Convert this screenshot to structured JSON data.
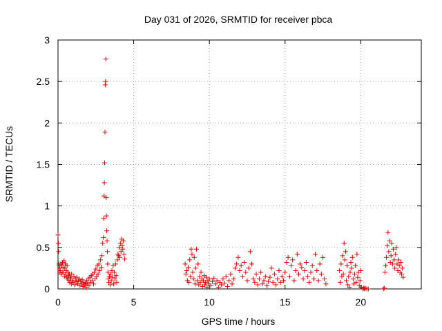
{
  "chart_data": {
    "type": "scatter",
    "title": "Day 031 of 2026, SRMTID for receiver pbca",
    "xlabel": "GPS time / hours",
    "ylabel": "SRMTID / TECUs",
    "xlim": [
      0,
      24
    ],
    "ylim": [
      0,
      3
    ],
    "xticks": [
      0,
      5,
      10,
      15,
      20
    ],
    "xtick_labels": [
      "0",
      "5",
      "10",
      "15",
      "20"
    ],
    "yticks": [
      0,
      0.5,
      1,
      1.5,
      2,
      2.5,
      3
    ],
    "ytick_labels": [
      "0",
      "0.5",
      "1",
      "1.5",
      "2",
      "2.5",
      "3"
    ],
    "grid": true,
    "marker": "+",
    "color": "#e00000",
    "series": [
      {
        "name": "pbca",
        "points": [
          [
            0.0,
            0.65
          ],
          [
            0.02,
            0.55
          ],
          [
            0.04,
            0.45
          ],
          [
            0.06,
            0.3
          ],
          [
            0.08,
            0.28
          ],
          [
            0.1,
            0.25
          ],
          [
            0.12,
            0.2
          ],
          [
            0.15,
            0.22
          ],
          [
            0.18,
            0.3
          ],
          [
            0.2,
            0.18
          ],
          [
            0.25,
            0.28
          ],
          [
            0.28,
            0.2
          ],
          [
            0.3,
            0.32
          ],
          [
            0.33,
            0.26
          ],
          [
            0.36,
            0.2
          ],
          [
            0.4,
            0.34
          ],
          [
            0.42,
            0.15
          ],
          [
            0.45,
            0.25
          ],
          [
            0.48,
            0.3
          ],
          [
            0.5,
            0.18
          ],
          [
            0.55,
            0.22
          ],
          [
            0.58,
            0.14
          ],
          [
            0.6,
            0.28
          ],
          [
            0.63,
            0.12
          ],
          [
            0.66,
            0.2
          ],
          [
            0.7,
            0.16
          ],
          [
            0.72,
            0.1
          ],
          [
            0.75,
            0.18
          ],
          [
            0.78,
            0.08
          ],
          [
            0.8,
            0.14
          ],
          [
            0.85,
            0.12
          ],
          [
            0.88,
            0.06
          ],
          [
            0.9,
            0.18
          ],
          [
            0.95,
            0.1
          ],
          [
            1.0,
            0.08
          ],
          [
            1.05,
            0.15
          ],
          [
            1.1,
            0.05
          ],
          [
            1.15,
            0.12
          ],
          [
            1.2,
            0.09
          ],
          [
            1.25,
            0.14
          ],
          [
            1.3,
            0.06
          ],
          [
            1.35,
            0.1
          ],
          [
            1.4,
            0.12
          ],
          [
            1.45,
            0.04
          ],
          [
            1.5,
            0.09
          ],
          [
            1.55,
            0.06
          ],
          [
            1.6,
            0.11
          ],
          [
            1.65,
            0.03
          ],
          [
            1.7,
            0.08
          ],
          [
            1.75,
            0.05
          ],
          [
            1.8,
            0.07
          ],
          [
            1.85,
            0.02
          ],
          [
            1.9,
            0.1
          ],
          [
            1.95,
            0.06
          ],
          [
            2.0,
            0.12
          ],
          [
            2.05,
            0.04
          ],
          [
            2.1,
            0.14
          ],
          [
            2.15,
            0.08
          ],
          [
            2.2,
            0.16
          ],
          [
            2.25,
            0.1
          ],
          [
            2.3,
            0.18
          ],
          [
            2.35,
            0.06
          ],
          [
            2.4,
            0.2
          ],
          [
            2.45,
            0.12
          ],
          [
            2.5,
            0.24
          ],
          [
            2.55,
            0.15
          ],
          [
            2.6,
            0.28
          ],
          [
            2.65,
            0.18
          ],
          [
            2.7,
            0.3
          ],
          [
            2.75,
            0.22
          ],
          [
            2.8,
            0.35
          ],
          [
            2.85,
            0.26
          ],
          [
            2.9,
            0.4
          ],
          [
            2.95,
            0.55
          ],
          [
            3.0,
            0.62
          ],
          [
            3.02,
            0.85
          ],
          [
            3.04,
            1.12
          ],
          [
            3.06,
            1.28
          ],
          [
            3.08,
            1.52
          ],
          [
            3.1,
            1.89
          ],
          [
            3.12,
            2.46
          ],
          [
            3.14,
            2.5
          ],
          [
            3.16,
            2.77
          ],
          [
            3.18,
            1.1
          ],
          [
            3.2,
            0.88
          ],
          [
            3.22,
            0.7
          ],
          [
            3.24,
            0.58
          ],
          [
            3.26,
            0.45
          ],
          [
            3.28,
            0.3
          ],
          [
            3.3,
            0.2
          ],
          [
            3.33,
            0.12
          ],
          [
            3.36,
            0.08
          ],
          [
            3.4,
            0.15
          ],
          [
            3.44,
            0.05
          ],
          [
            3.48,
            0.18
          ],
          [
            3.52,
            0.1
          ],
          [
            3.56,
            0.22
          ],
          [
            3.6,
            0.14
          ],
          [
            3.64,
            0.28
          ],
          [
            3.68,
            0.06
          ],
          [
            3.72,
            0.2
          ],
          [
            3.76,
            0.12
          ],
          [
            3.8,
            0.3
          ],
          [
            3.84,
            0.16
          ],
          [
            3.88,
            0.08
          ],
          [
            3.92,
            0.35
          ],
          [
            3.96,
            0.42
          ],
          [
            4.0,
            0.4
          ],
          [
            4.04,
            0.5
          ],
          [
            4.08,
            0.38
          ],
          [
            4.12,
            0.55
          ],
          [
            4.16,
            0.45
          ],
          [
            4.2,
            0.6
          ],
          [
            4.24,
            0.52
          ],
          [
            4.28,
            0.48
          ],
          [
            4.32,
            0.58
          ],
          [
            4.36,
            0.42
          ],
          [
            4.4,
            0.36
          ],
          [
            8.4,
            0.3
          ],
          [
            8.45,
            0.18
          ],
          [
            8.5,
            0.22
          ],
          [
            8.55,
            0.1
          ],
          [
            8.6,
            0.26
          ],
          [
            8.65,
            0.08
          ],
          [
            8.7,
            0.35
          ],
          [
            8.75,
            0.15
          ],
          [
            8.8,
            0.48
          ],
          [
            8.85,
            0.42
          ],
          [
            8.9,
            0.2
          ],
          [
            8.95,
            0.12
          ],
          [
            9.0,
            0.38
          ],
          [
            9.05,
            0.06
          ],
          [
            9.1,
            0.25
          ],
          [
            9.15,
            0.48
          ],
          [
            9.2,
            0.1
          ],
          [
            9.25,
            0.3
          ],
          [
            9.3,
            0.05
          ],
          [
            9.35,
            0.15
          ],
          [
            9.4,
            0.08
          ],
          [
            9.45,
            0.2
          ],
          [
            9.5,
            0.12
          ],
          [
            9.55,
            0.03
          ],
          [
            9.6,
            0.1
          ],
          [
            9.65,
            0.16
          ],
          [
            9.7,
            0.05
          ],
          [
            9.75,
            0.08
          ],
          [
            9.8,
            0.14
          ],
          [
            9.85,
            0.02
          ],
          [
            9.9,
            0.1
          ],
          [
            9.95,
            0.06
          ],
          [
            10.0,
            0.12
          ],
          [
            10.1,
            0.04
          ],
          [
            10.2,
            0.09
          ],
          [
            10.3,
            0.13
          ],
          [
            10.4,
            0.06
          ],
          [
            10.5,
            0.1
          ],
          [
            10.6,
            0.02
          ],
          [
            10.7,
            0.08
          ],
          [
            10.8,
            0.05
          ],
          [
            10.9,
            0.12
          ],
          [
            11.0,
            0.07
          ],
          [
            11.1,
            0.15
          ],
          [
            11.2,
            0.03
          ],
          [
            11.3,
            0.1
          ],
          [
            11.4,
            0.18
          ],
          [
            11.5,
            0.06
          ],
          [
            11.6,
            0.12
          ],
          [
            11.7,
            0.25
          ],
          [
            11.8,
            0.3
          ],
          [
            11.9,
            0.38
          ],
          [
            12.0,
            0.22
          ],
          [
            12.1,
            0.28
          ],
          [
            12.2,
            0.15
          ],
          [
            12.3,
            0.32
          ],
          [
            12.4,
            0.2
          ],
          [
            12.5,
            0.1
          ],
          [
            12.6,
            0.25
          ],
          [
            12.7,
            0.45
          ],
          [
            12.8,
            0.3
          ],
          [
            12.9,
            0.12
          ],
          [
            13.0,
            0.08
          ],
          [
            13.1,
            0.18
          ],
          [
            13.2,
            0.05
          ],
          [
            13.3,
            0.12
          ],
          [
            13.4,
            0.2
          ],
          [
            13.5,
            0.06
          ],
          [
            13.6,
            0.1
          ],
          [
            13.7,
            0.15
          ],
          [
            13.8,
            0.04
          ],
          [
            13.9,
            0.09
          ],
          [
            14.0,
            0.14
          ],
          [
            14.1,
            0.25
          ],
          [
            14.2,
            0.08
          ],
          [
            14.3,
            0.18
          ],
          [
            14.4,
            0.05
          ],
          [
            14.5,
            0.12
          ],
          [
            14.6,
            0.22
          ],
          [
            14.7,
            0.08
          ],
          [
            14.8,
            0.15
          ],
          [
            14.9,
            0.1
          ],
          [
            15.0,
            0.2
          ],
          [
            15.1,
            0.32
          ],
          [
            15.2,
            0.38
          ],
          [
            15.3,
            0.15
          ],
          [
            15.4,
            0.28
          ],
          [
            15.5,
            0.35
          ],
          [
            15.6,
            0.1
          ],
          [
            15.7,
            0.22
          ],
          [
            15.8,
            0.42
          ],
          [
            15.9,
            0.18
          ],
          [
            16.0,
            0.3
          ],
          [
            16.1,
            0.26
          ],
          [
            16.2,
            0.12
          ],
          [
            16.3,
            0.22
          ],
          [
            16.4,
            0.32
          ],
          [
            16.5,
            0.15
          ],
          [
            16.6,
            0.08
          ],
          [
            16.7,
            0.2
          ],
          [
            16.8,
            0.28
          ],
          [
            16.9,
            0.12
          ],
          [
            17.0,
            0.42
          ],
          [
            17.1,
            0.22
          ],
          [
            17.2,
            0.1
          ],
          [
            17.3,
            0.3
          ],
          [
            17.4,
            0.18
          ],
          [
            17.5,
            0.38
          ],
          [
            17.6,
            0.12
          ],
          [
            17.7,
            0.06
          ],
          [
            18.6,
            0.22
          ],
          [
            18.65,
            0.08
          ],
          [
            18.7,
            0.3
          ],
          [
            18.75,
            0.15
          ],
          [
            18.8,
            0.4
          ],
          [
            18.85,
            0.18
          ],
          [
            18.9,
            0.55
          ],
          [
            18.95,
            0.35
          ],
          [
            19.0,
            0.45
          ],
          [
            19.05,
            0.1
          ],
          [
            19.1,
            0.28
          ],
          [
            19.15,
            0.05
          ],
          [
            19.2,
            0.15
          ],
          [
            19.25,
            0.02
          ],
          [
            19.3,
            0.2
          ],
          [
            19.35,
            0.32
          ],
          [
            19.4,
            0.25
          ],
          [
            19.45,
            0.38
          ],
          [
            19.5,
            0.12
          ],
          [
            19.55,
            0.06
          ],
          [
            19.6,
            0.18
          ],
          [
            19.65,
            0.28
          ],
          [
            19.7,
            0.08
          ],
          [
            19.75,
            0.42
          ],
          [
            19.8,
            0.14
          ],
          [
            19.85,
            0.2
          ],
          [
            19.9,
            0.04
          ],
          [
            19.95,
            0.1
          ],
          [
            20.0,
            0.22
          ],
          [
            20.05,
            0.02
          ],
          [
            20.15,
            0.0
          ],
          [
            20.2,
            0.01
          ],
          [
            20.25,
            0.0
          ],
          [
            20.3,
            0.01
          ],
          [
            20.4,
            0.0
          ],
          [
            20.5,
            0.0
          ],
          [
            21.5,
            0.0
          ],
          [
            21.55,
            0.01
          ],
          [
            21.6,
            0.2
          ],
          [
            21.65,
            0.28
          ],
          [
            21.7,
            0.38
          ],
          [
            21.75,
            0.52
          ],
          [
            21.8,
            0.68
          ],
          [
            21.85,
            0.45
          ],
          [
            21.9,
            0.58
          ],
          [
            21.95,
            0.32
          ],
          [
            22.0,
            0.4
          ],
          [
            22.05,
            0.55
          ],
          [
            22.1,
            0.3
          ],
          [
            22.15,
            0.48
          ],
          [
            22.2,
            0.35
          ],
          [
            22.25,
            0.25
          ],
          [
            22.3,
            0.42
          ],
          [
            22.35,
            0.5
          ],
          [
            22.4,
            0.3
          ],
          [
            22.45,
            0.22
          ],
          [
            22.5,
            0.35
          ],
          [
            22.55,
            0.28
          ],
          [
            22.6,
            0.2
          ],
          [
            22.65,
            0.32
          ],
          [
            22.7,
            0.18
          ],
          [
            22.75,
            0.25
          ],
          [
            22.8,
            0.14
          ]
        ]
      }
    ]
  }
}
